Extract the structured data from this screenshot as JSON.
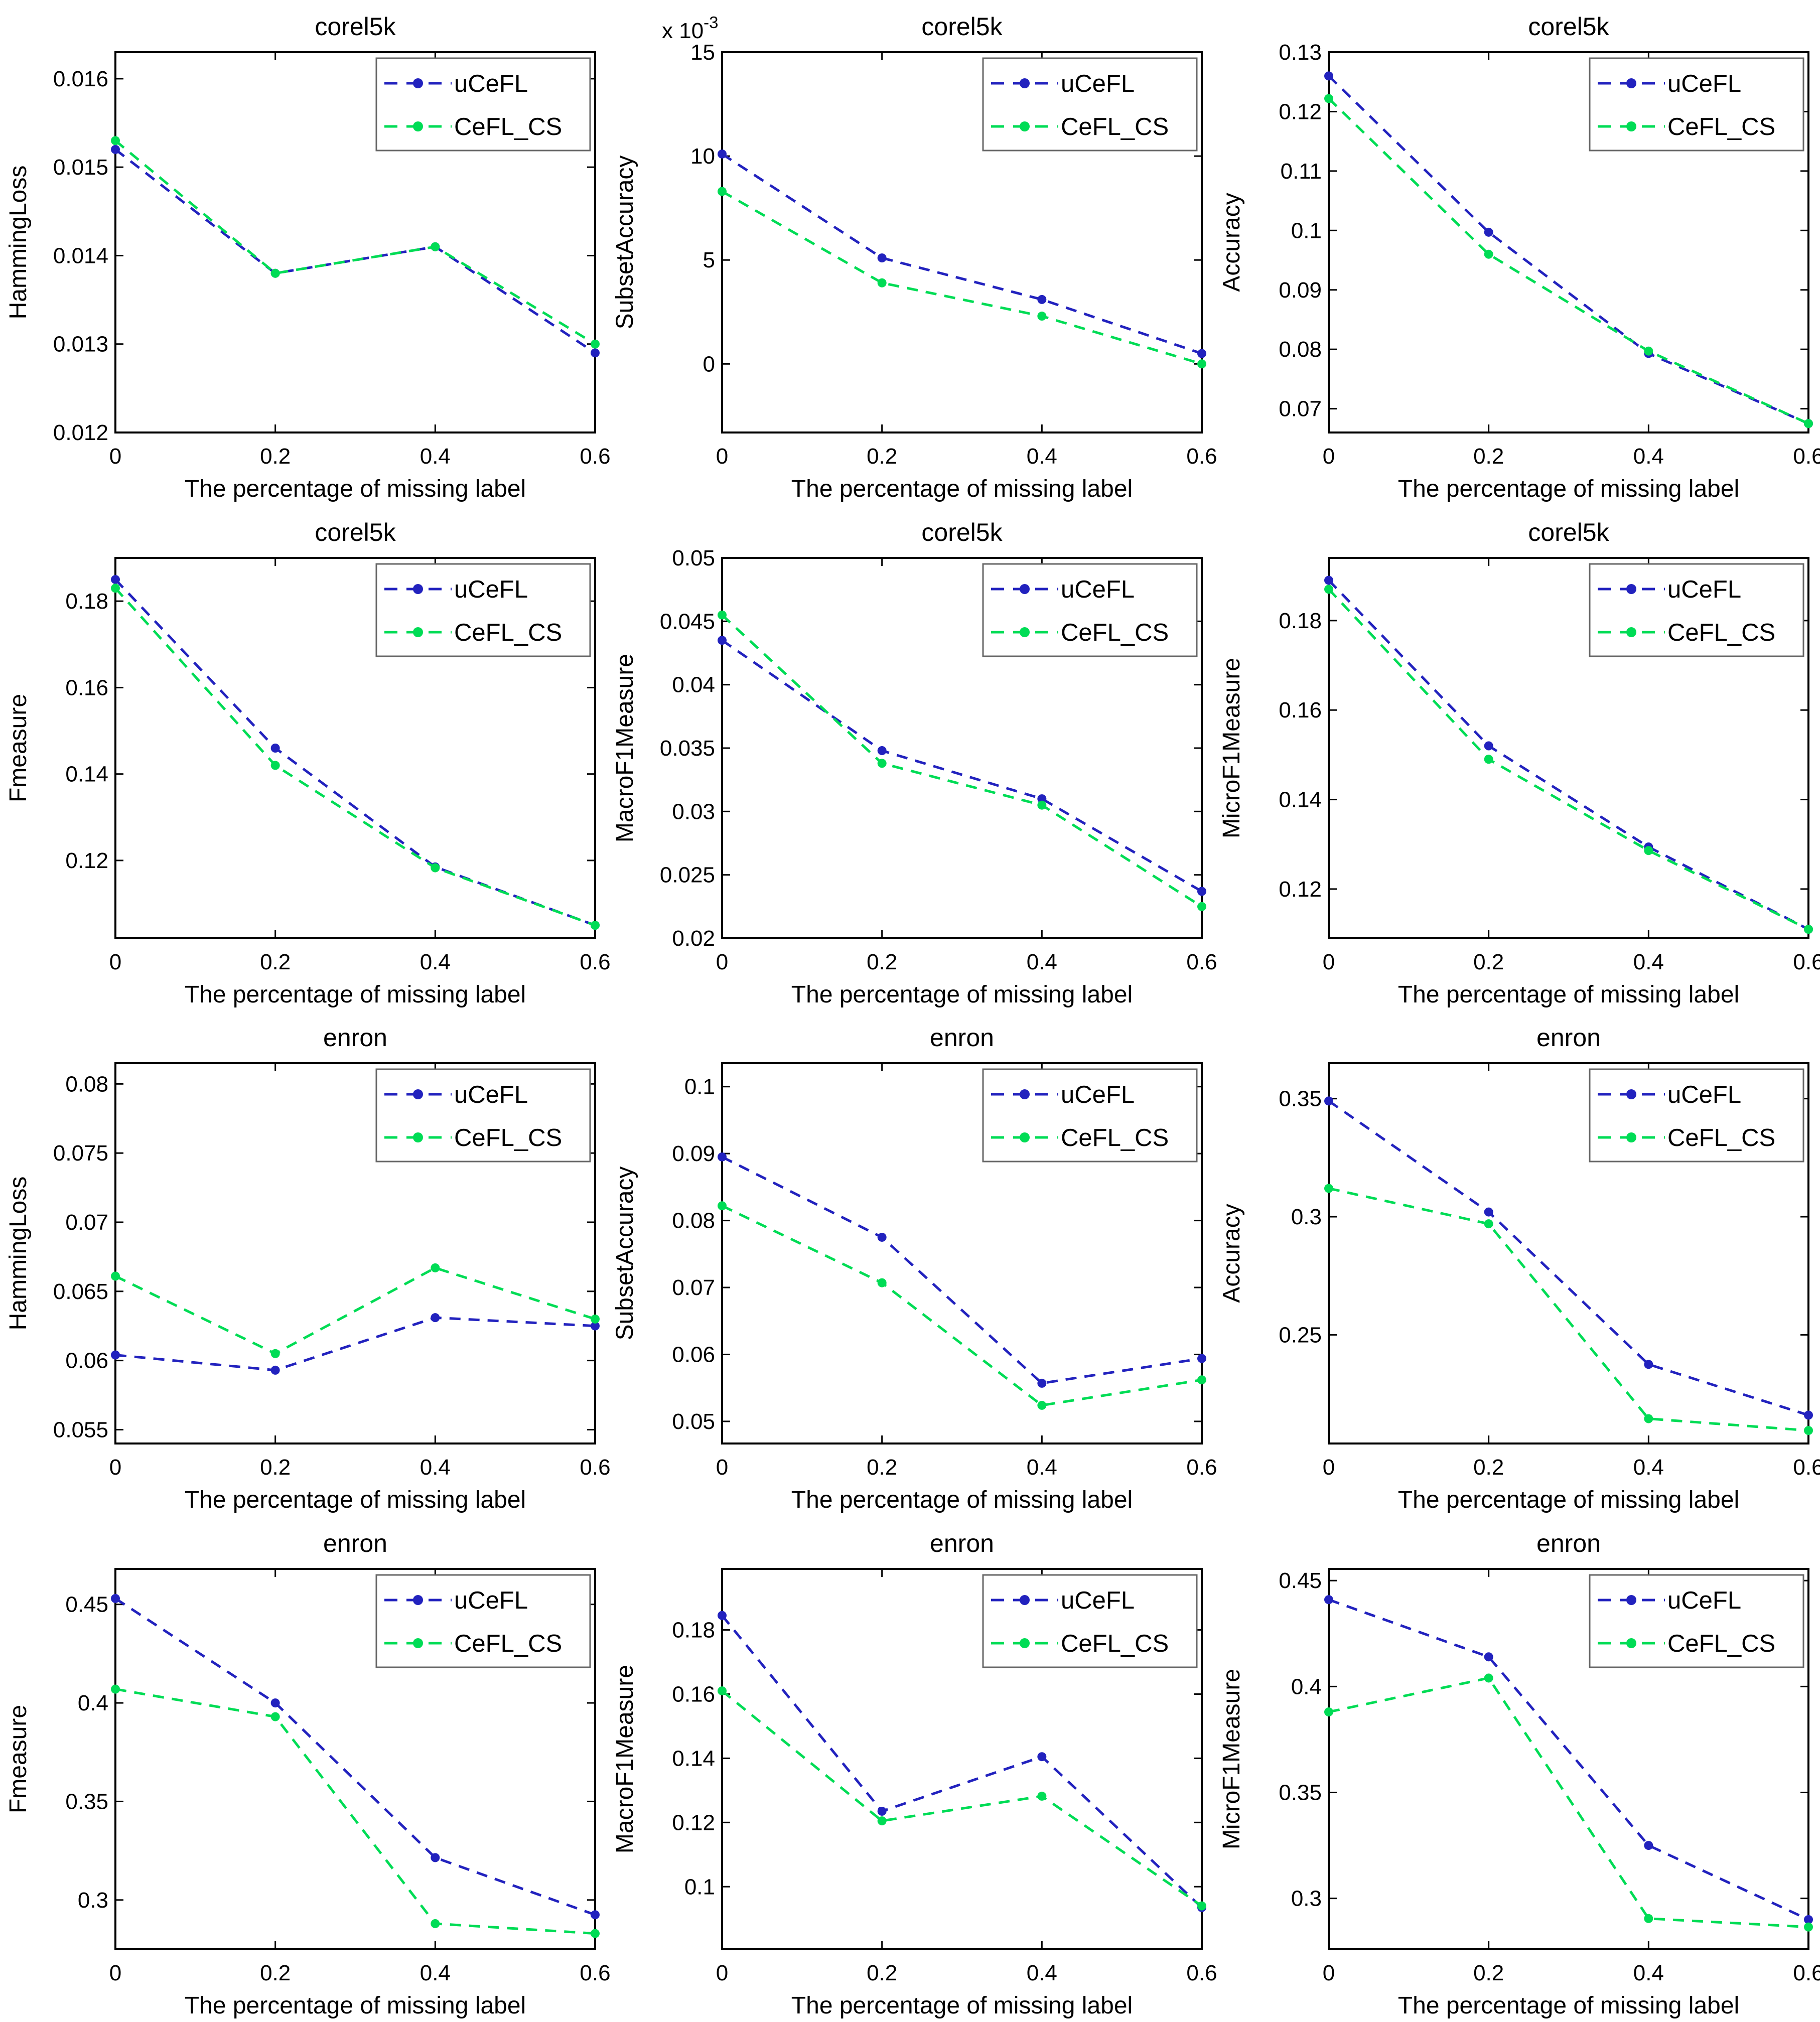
{
  "figure": {
    "background": "#ffffff",
    "rows": 4,
    "columns": 3,
    "datasets": [
      "corel5k",
      "enron"
    ],
    "metrics": [
      "HammingLoss",
      "SubsetAccuracy",
      "Accuracy",
      "Fmeasure",
      "MacroF1Measure",
      "MicroF1Measure"
    ]
  },
  "legend": {
    "position": "top-right",
    "entries": [
      {
        "name": "uCeFL",
        "color": "#2222BE",
        "linestyle": "dashed",
        "marker": "circle"
      },
      {
        "name": "CeFL_CS",
        "color": "#00DC55",
        "linestyle": "dashed",
        "marker": "circle"
      }
    ]
  },
  "axis": {
    "xlabel": "The percentage of missing label",
    "xlim": [
      0,
      0.6
    ],
    "xtick_values": [
      0,
      0.2,
      0.4,
      0.6
    ],
    "xtick_labels": [
      "0",
      "0.2",
      "0.4",
      "0.6"
    ],
    "frame_color": "#000000",
    "grid": false
  },
  "chart_data": [
    {
      "type": "line",
      "title": "corel5k",
      "ylabel": "HammingLoss",
      "xlabel": "The percentage of missing label",
      "x": [
        0,
        0.2,
        0.4,
        0.6
      ],
      "series": [
        {
          "name": "uCeFL",
          "color": "#2222BE",
          "values": [
            0.0152,
            0.0138,
            0.0141,
            0.0129
          ]
        },
        {
          "name": "CeFL_CS",
          "color": "#00DC55",
          "values": [
            0.0153,
            0.0138,
            0.0141,
            0.013
          ]
        }
      ],
      "ylim": [
        0.012,
        0.0163
      ],
      "ytick_values": [
        0.012,
        0.013,
        0.014,
        0.015,
        0.016
      ],
      "ytick_labels": [
        "0.012",
        "0.013",
        "0.014",
        "0.015",
        "0.016"
      ],
      "y_scale_label": null
    },
    {
      "type": "line",
      "title": "corel5k",
      "ylabel": "SubsetAccuracy",
      "xlabel": "The percentage of missing label",
      "x": [
        0,
        0.2,
        0.4,
        0.6
      ],
      "series": [
        {
          "name": "uCeFL",
          "color": "#2222BE",
          "values": [
            0.0101,
            0.0051,
            0.0031,
            0.0005
          ]
        },
        {
          "name": "CeFL_CS",
          "color": "#00DC55",
          "values": [
            0.0083,
            0.0039,
            0.0023,
            0.0
          ]
        }
      ],
      "ylim": [
        -0.0033,
        0.015
      ],
      "ytick_values": [
        0,
        0.005,
        0.01,
        0.015
      ],
      "ytick_labels": [
        "0",
        "5",
        "10",
        "15"
      ],
      "y_scale_label": {
        "base": "x 10",
        "exponent": "-3"
      }
    },
    {
      "type": "line",
      "title": "corel5k",
      "ylabel": "Accuracy",
      "xlabel": "The percentage of missing label",
      "x": [
        0,
        0.2,
        0.4,
        0.6
      ],
      "series": [
        {
          "name": "uCeFL",
          "color": "#2222BE",
          "values": [
            0.126,
            0.0997,
            0.0793,
            0.0675
          ]
        },
        {
          "name": "CeFL_CS",
          "color": "#00DC55",
          "values": [
            0.1222,
            0.096,
            0.0797,
            0.0675
          ]
        }
      ],
      "ylim": [
        0.066,
        0.13
      ],
      "ytick_values": [
        0.07,
        0.08,
        0.09,
        0.1,
        0.11,
        0.12,
        0.13
      ],
      "ytick_labels": [
        "0.07",
        "0.08",
        "0.09",
        "0.1",
        "0.11",
        "0.12",
        "0.13"
      ],
      "y_scale_label": null
    },
    {
      "type": "line",
      "title": "corel5k",
      "ylabel": "Fmeasure",
      "xlabel": "The percentage of missing label",
      "x": [
        0,
        0.2,
        0.4,
        0.6
      ],
      "series": [
        {
          "name": "uCeFL",
          "color": "#2222BE",
          "values": [
            0.185,
            0.146,
            0.1185,
            0.105
          ]
        },
        {
          "name": "CeFL_CS",
          "color": "#00DC55",
          "values": [
            0.183,
            0.142,
            0.1183,
            0.105
          ]
        }
      ],
      "ylim": [
        0.102,
        0.19
      ],
      "ytick_values": [
        0.12,
        0.14,
        0.16,
        0.18
      ],
      "ytick_labels": [
        "0.12",
        "0.14",
        "0.16",
        "0.18"
      ],
      "y_scale_label": null
    },
    {
      "type": "line",
      "title": "corel5k",
      "ylabel": "MacroF1Measure",
      "xlabel": "The percentage of missing label",
      "x": [
        0,
        0.2,
        0.4,
        0.6
      ],
      "series": [
        {
          "name": "uCeFL",
          "color": "#2222BE",
          "values": [
            0.0435,
            0.0348,
            0.031,
            0.0237
          ]
        },
        {
          "name": "CeFL_CS",
          "color": "#00DC55",
          "values": [
            0.0455,
            0.0338,
            0.0305,
            0.0225
          ]
        }
      ],
      "ylim": [
        0.02,
        0.05
      ],
      "ytick_values": [
        0.02,
        0.025,
        0.03,
        0.035,
        0.04,
        0.045,
        0.05
      ],
      "ytick_labels": [
        "0.02",
        "0.025",
        "0.03",
        "0.035",
        "0.04",
        "0.045",
        "0.05"
      ],
      "y_scale_label": null
    },
    {
      "type": "line",
      "title": "corel5k",
      "ylabel": "MicroF1Measure",
      "xlabel": "The percentage of missing label",
      "x": [
        0,
        0.2,
        0.4,
        0.6
      ],
      "series": [
        {
          "name": "uCeFL",
          "color": "#2222BE",
          "values": [
            0.189,
            0.152,
            0.1294,
            0.111
          ]
        },
        {
          "name": "CeFL_CS",
          "color": "#00DC55",
          "values": [
            0.187,
            0.149,
            0.1286,
            0.111
          ]
        }
      ],
      "ylim": [
        0.109,
        0.194
      ],
      "ytick_values": [
        0.12,
        0.14,
        0.16,
        0.18
      ],
      "ytick_labels": [
        "0.12",
        "0.14",
        "0.16",
        "0.18"
      ],
      "y_scale_label": null
    },
    {
      "type": "line",
      "title": "enron",
      "ylabel": "HammingLoss",
      "xlabel": "The percentage of missing label",
      "x": [
        0,
        0.2,
        0.4,
        0.6
      ],
      "series": [
        {
          "name": "uCeFL",
          "color": "#2222BE",
          "values": [
            0.0604,
            0.0593,
            0.0631,
            0.0625
          ]
        },
        {
          "name": "CeFL_CS",
          "color": "#00DC55",
          "values": [
            0.0661,
            0.0605,
            0.0667,
            0.063
          ]
        }
      ],
      "ylim": [
        0.054,
        0.0815
      ],
      "ytick_values": [
        0.055,
        0.06,
        0.065,
        0.07,
        0.075,
        0.08
      ],
      "ytick_labels": [
        "0.055",
        "0.06",
        "0.065",
        "0.07",
        "0.075",
        "0.08"
      ],
      "y_scale_label": null
    },
    {
      "type": "line",
      "title": "enron",
      "ylabel": "SubsetAccuracy",
      "xlabel": "The percentage of missing label",
      "x": [
        0,
        0.2,
        0.4,
        0.6
      ],
      "series": [
        {
          "name": "uCeFL",
          "color": "#2222BE",
          "values": [
            0.0895,
            0.0775,
            0.0557,
            0.0594
          ]
        },
        {
          "name": "CeFL_CS",
          "color": "#00DC55",
          "values": [
            0.0822,
            0.0707,
            0.0524,
            0.0562
          ]
        }
      ],
      "ylim": [
        0.0467,
        0.1035
      ],
      "ytick_values": [
        0.05,
        0.06,
        0.07,
        0.08,
        0.09,
        0.1
      ],
      "ytick_labels": [
        "0.05",
        "0.06",
        "0.07",
        "0.08",
        "0.09",
        "0.1"
      ],
      "y_scale_label": null
    },
    {
      "type": "line",
      "title": "enron",
      "ylabel": "Accuracy",
      "xlabel": "The percentage of missing label",
      "x": [
        0,
        0.2,
        0.4,
        0.6
      ],
      "series": [
        {
          "name": "uCeFL",
          "color": "#2222BE",
          "values": [
            0.349,
            0.302,
            0.2375,
            0.216
          ]
        },
        {
          "name": "CeFL_CS",
          "color": "#00DC55",
          "values": [
            0.312,
            0.297,
            0.2145,
            0.2095
          ]
        }
      ],
      "ylim": [
        0.204,
        0.365
      ],
      "ytick_values": [
        0.25,
        0.3,
        0.35
      ],
      "ytick_labels": [
        "0.25",
        "0.3",
        "0.35"
      ],
      "y_scale_label": null
    },
    {
      "type": "line",
      "title": "enron",
      "ylabel": "Fmeasure",
      "xlabel": "The percentage of missing label",
      "x": [
        0,
        0.2,
        0.4,
        0.6
      ],
      "series": [
        {
          "name": "uCeFL",
          "color": "#2222BE",
          "values": [
            0.453,
            0.4,
            0.3215,
            0.2925
          ]
        },
        {
          "name": "CeFL_CS",
          "color": "#00DC55",
          "values": [
            0.407,
            0.393,
            0.288,
            0.283
          ]
        }
      ],
      "ylim": [
        0.275,
        0.468
      ],
      "ytick_values": [
        0.3,
        0.35,
        0.4,
        0.45
      ],
      "ytick_labels": [
        "0.3",
        "0.35",
        "0.4",
        "0.45"
      ],
      "y_scale_label": null
    },
    {
      "type": "line",
      "title": "enron",
      "ylabel": "MacroF1Measure",
      "xlabel": "The percentage of missing label",
      "x": [
        0,
        0.2,
        0.4,
        0.6
      ],
      "series": [
        {
          "name": "uCeFL",
          "color": "#2222BE",
          "values": [
            0.1845,
            0.1235,
            0.1405,
            0.0935
          ]
        },
        {
          "name": "CeFL_CS",
          "color": "#00DC55",
          "values": [
            0.161,
            0.1205,
            0.1282,
            0.094
          ]
        }
      ],
      "ylim": [
        0.0805,
        0.199
      ],
      "ytick_values": [
        0.1,
        0.12,
        0.14,
        0.16,
        0.18
      ],
      "ytick_labels": [
        "0.1",
        "0.12",
        "0.14",
        "0.16",
        "0.18"
      ],
      "y_scale_label": null
    },
    {
      "type": "line",
      "title": "enron",
      "ylabel": "MicroF1Measure",
      "xlabel": "The percentage of missing label",
      "x": [
        0,
        0.2,
        0.4,
        0.6
      ],
      "series": [
        {
          "name": "uCeFL",
          "color": "#2222BE",
          "values": [
            0.441,
            0.414,
            0.325,
            0.29
          ]
        },
        {
          "name": "CeFL_CS",
          "color": "#00DC55",
          "values": [
            0.388,
            0.404,
            0.2905,
            0.2865
          ]
        }
      ],
      "ylim": [
        0.276,
        0.4555
      ],
      "ytick_values": [
        0.3,
        0.35,
        0.4,
        0.45
      ],
      "ytick_labels": [
        "0.3",
        "0.35",
        "0.4",
        "0.45"
      ],
      "y_scale_label": null
    }
  ]
}
